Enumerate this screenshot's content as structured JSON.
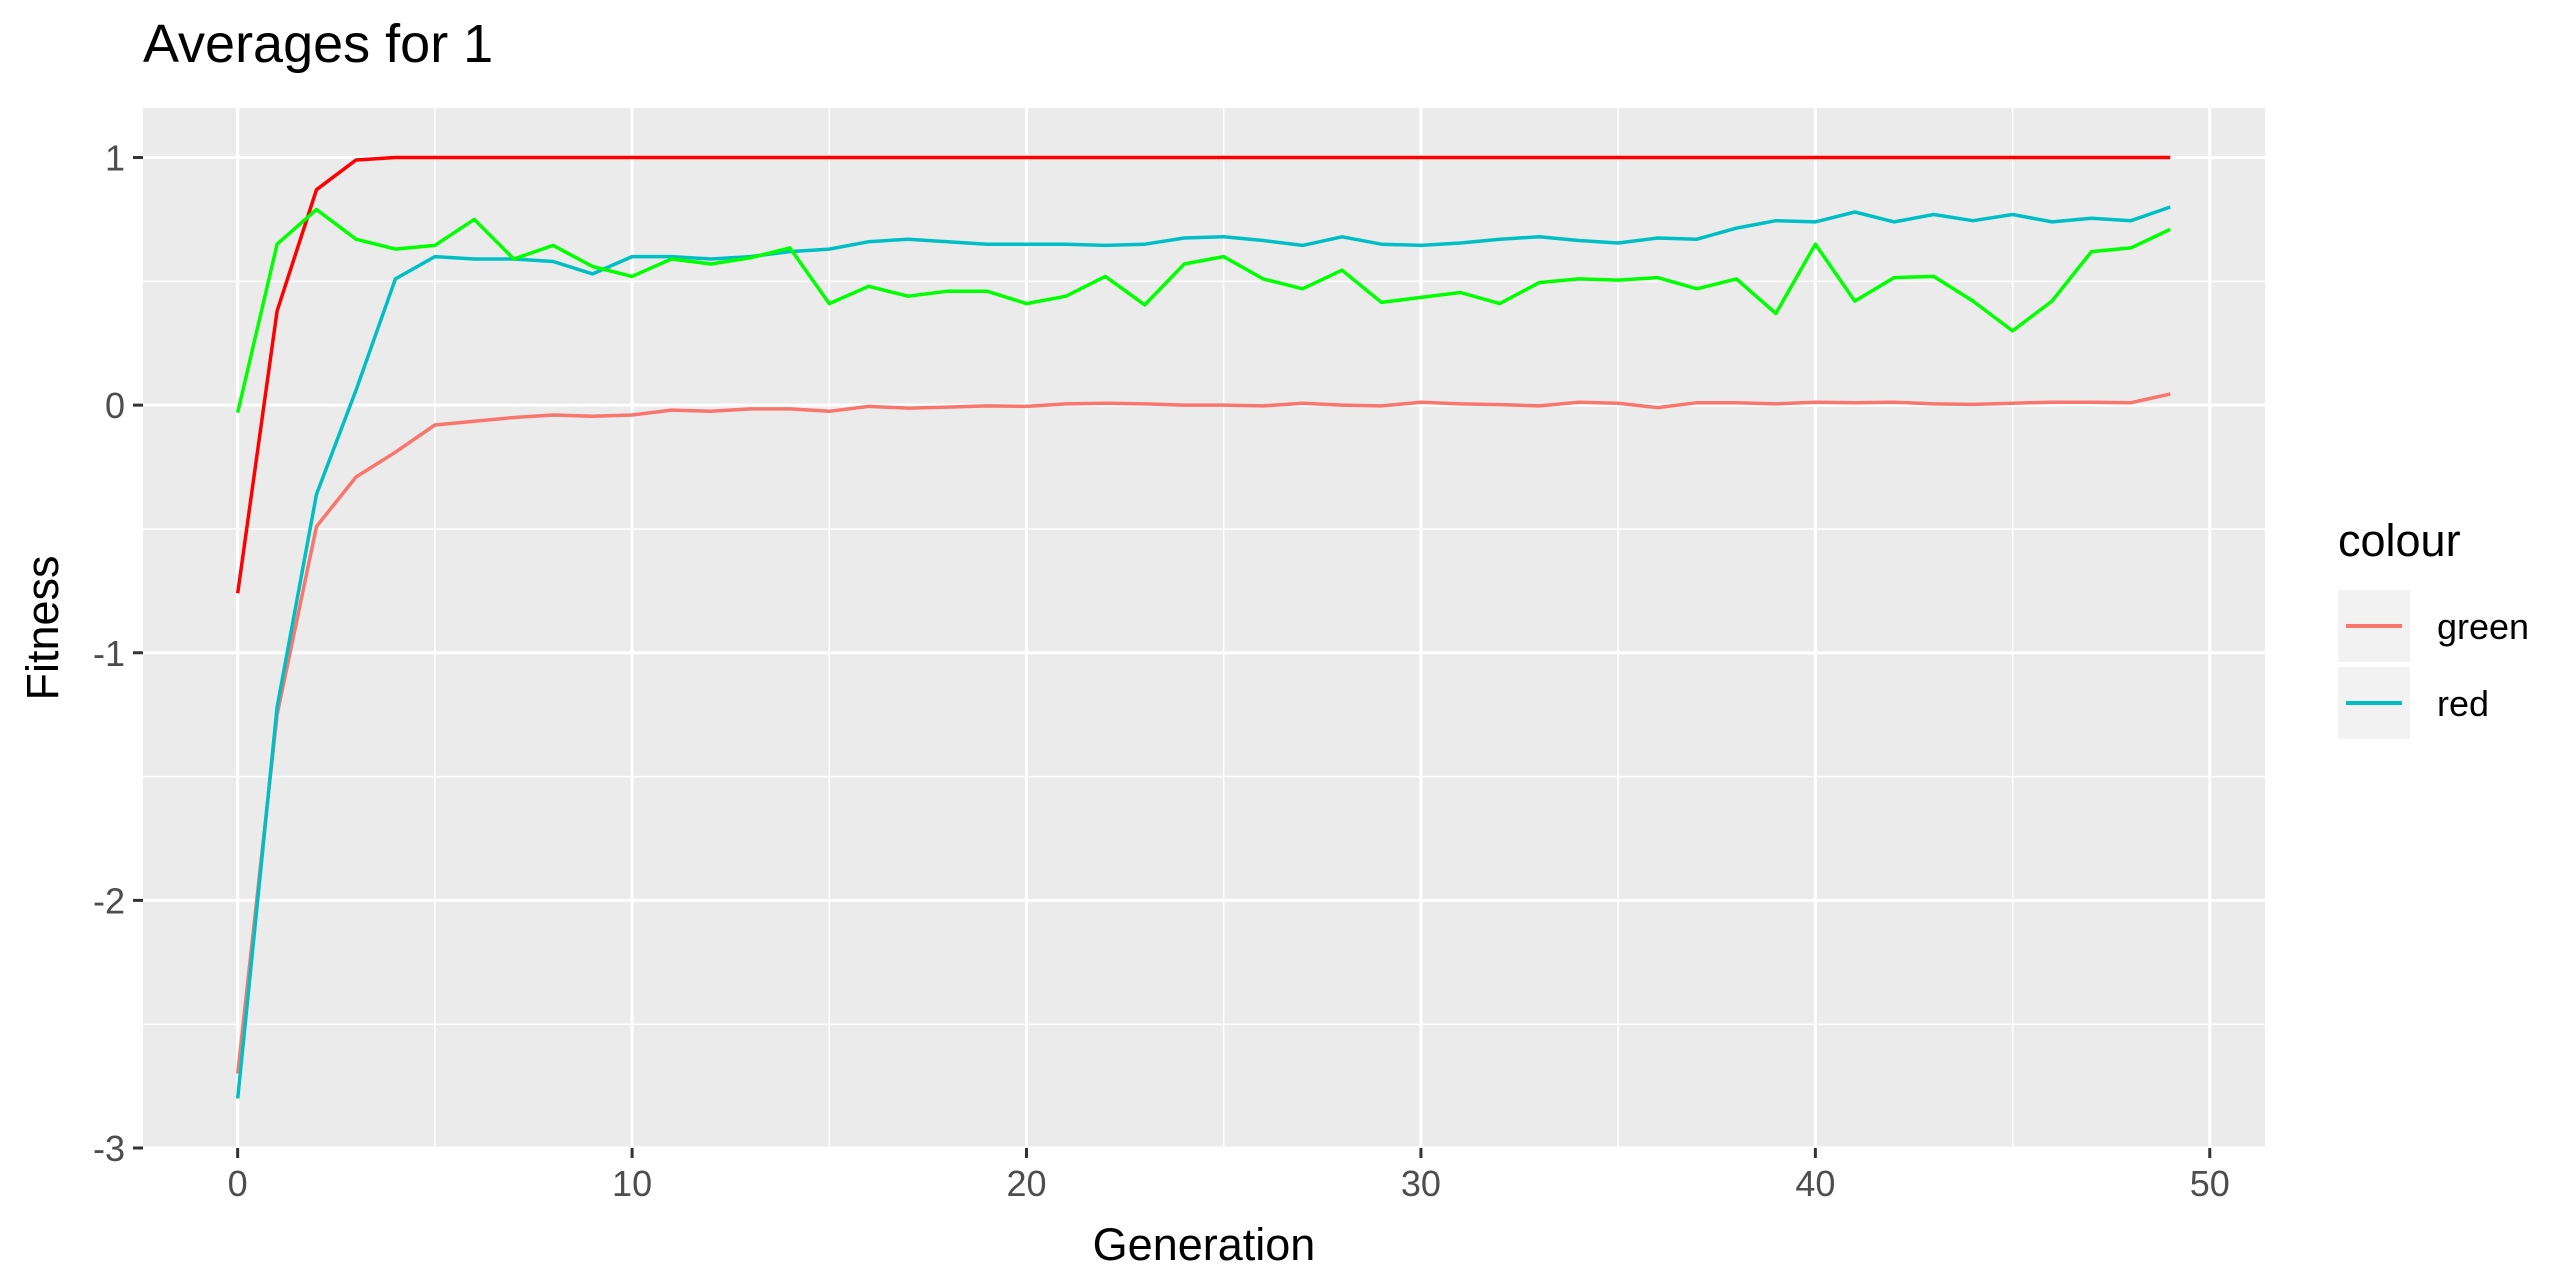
{
  "chart_data": {
    "type": "line",
    "title": "Averages for  1",
    "xlabel": "Generation",
    "ylabel": "Fitness",
    "xlim": [
      -2.4,
      51.4
    ],
    "ylim": [
      -3,
      1.2
    ],
    "x_ticks": [
      0,
      10,
      20,
      30,
      40,
      50
    ],
    "y_ticks": [
      -3,
      -2,
      -1,
      0,
      1
    ],
    "grid": true,
    "legend_title": "colour",
    "legend_position": "right",
    "x": [
      0,
      1,
      2,
      3,
      4,
      5,
      6,
      7,
      8,
      9,
      10,
      11,
      12,
      13,
      14,
      15,
      16,
      17,
      18,
      19,
      20,
      21,
      22,
      23,
      24,
      25,
      26,
      27,
      28,
      29,
      30,
      31,
      32,
      33,
      34,
      35,
      36,
      37,
      38,
      39,
      40,
      41,
      42,
      43,
      44,
      45,
      46,
      47,
      48,
      49
    ],
    "series": [
      {
        "name": "green",
        "in_legend": true,
        "color": "#F8766D",
        "values": [
          -2.7,
          -1.25,
          -0.49,
          -0.29,
          -0.19,
          -0.08,
          -0.065,
          -0.05,
          -0.04,
          -0.045,
          -0.04,
          -0.02,
          -0.025,
          -0.015,
          -0.015,
          -0.025,
          -0.005,
          -0.012,
          -0.008,
          -0.003,
          -0.005,
          0.005,
          0.008,
          0.005,
          0.0,
          0.0,
          -0.003,
          0.008,
          0.0,
          -0.003,
          0.012,
          0.005,
          0.002,
          -0.003,
          0.012,
          0.008,
          -0.01,
          0.01,
          0.01,
          0.005,
          0.012,
          0.01,
          0.012,
          0.005,
          0.003,
          0.008,
          0.012,
          0.012,
          0.01,
          0.045
        ]
      },
      {
        "name": "red",
        "in_legend": true,
        "color": "#00BFC4",
        "values": [
          -2.8,
          -1.22,
          -0.36,
          0.06,
          0.51,
          0.6,
          0.59,
          0.59,
          0.58,
          0.53,
          0.6,
          0.6,
          0.59,
          0.6,
          0.62,
          0.63,
          0.66,
          0.67,
          0.66,
          0.65,
          0.65,
          0.65,
          0.645,
          0.65,
          0.675,
          0.68,
          0.665,
          0.645,
          0.68,
          0.65,
          0.645,
          0.655,
          0.67,
          0.68,
          0.665,
          0.655,
          0.675,
          0.67,
          0.715,
          0.745,
          0.74,
          0.78,
          0.74,
          0.77,
          0.745,
          0.77,
          0.74,
          0.755,
          0.745,
          0.8
        ]
      },
      {
        "name": "",
        "in_legend": false,
        "color": "#FF0000",
        "values": [
          -0.76,
          0.38,
          0.87,
          0.99,
          1.0,
          1.0,
          1.0,
          1.0,
          1.0,
          1.0,
          1.0,
          1.0,
          1.0,
          1.0,
          1.0,
          1.0,
          1.0,
          1.0,
          1.0,
          1.0,
          1.0,
          1.0,
          1.0,
          1.0,
          1.0,
          1.0,
          1.0,
          1.0,
          1.0,
          1.0,
          1.0,
          1.0,
          1.0,
          1.0,
          1.0,
          1.0,
          1.0,
          1.0,
          1.0,
          1.0,
          1.0,
          1.0,
          1.0,
          1.0,
          1.0,
          1.0,
          1.0,
          1.0,
          1.0,
          1.0
        ]
      },
      {
        "name": "",
        "in_legend": false,
        "color": "#00FF00",
        "values": [
          -0.03,
          0.65,
          0.79,
          0.67,
          0.63,
          0.645,
          0.75,
          0.59,
          0.645,
          0.56,
          0.52,
          0.59,
          0.57,
          0.595,
          0.635,
          0.41,
          0.48,
          0.44,
          0.46,
          0.46,
          0.41,
          0.44,
          0.52,
          0.405,
          0.57,
          0.6,
          0.51,
          0.47,
          0.545,
          0.415,
          0.435,
          0.455,
          0.41,
          0.495,
          0.51,
          0.505,
          0.515,
          0.47,
          0.51,
          0.37,
          0.65,
          0.42,
          0.515,
          0.52,
          0.42,
          0.3,
          0.42,
          0.62,
          0.635,
          0.71
        ]
      }
    ]
  }
}
